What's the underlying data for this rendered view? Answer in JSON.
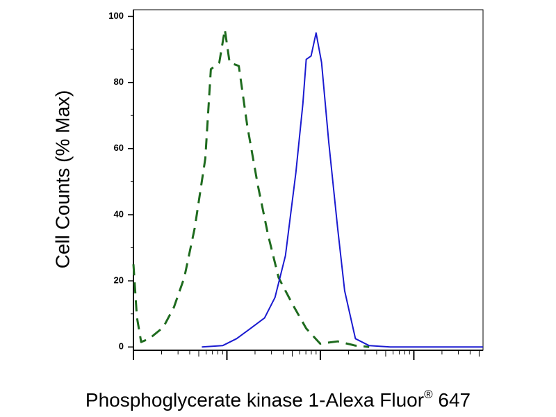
{
  "chart_data": {
    "type": "line",
    "ylabel": "Cell Counts (% Max)",
    "xlabel_parts": [
      "Phosphoglycerate kinase 1-Alexa Fluor",
      "®",
      " 647"
    ],
    "xscale": "log",
    "xlim": [
      1,
      5500
    ],
    "xticks": [
      1,
      10,
      100,
      1000
    ],
    "ylim": [
      -1,
      102
    ],
    "yticks": [
      0,
      20,
      40,
      60,
      80,
      100
    ],
    "series": [
      {
        "color": "#1e6b1e",
        "line_style": "dashed",
        "x": [
          1,
          1.09,
          1.21,
          1.48,
          2.09,
          2.71,
          3.5,
          4.53,
          5.87,
          6.73,
          8.28,
          9.5,
          10.7,
          13.4,
          16.5,
          21.4,
          27.5,
          35.7,
          50.2,
          70.6,
          99.5,
          153,
          237,
          333
        ],
        "values": [
          25,
          9,
          1.5,
          2.5,
          6,
          12,
          21,
          36,
          57,
          84,
          86,
          96,
          86,
          85,
          67,
          49,
          34,
          21,
          13,
          5.6,
          1,
          1.7,
          0.4,
          0
        ]
      },
      {
        "color": "#1a1ad0",
        "line_style": "solid",
        "x": [
          5.39,
          9.0,
          12.7,
          17.9,
          25.3,
          32.7,
          42.3,
          54.7,
          65,
          70.6,
          79.5,
          90,
          103,
          123,
          153,
          182,
          237,
          333,
          558,
          5500
        ],
        "values": [
          0,
          0.4,
          2.5,
          5.6,
          8.8,
          15,
          27.6,
          52.7,
          73.6,
          87,
          88,
          95,
          86,
          62,
          36,
          17,
          2.5,
          0.4,
          0,
          0
        ]
      }
    ]
  }
}
